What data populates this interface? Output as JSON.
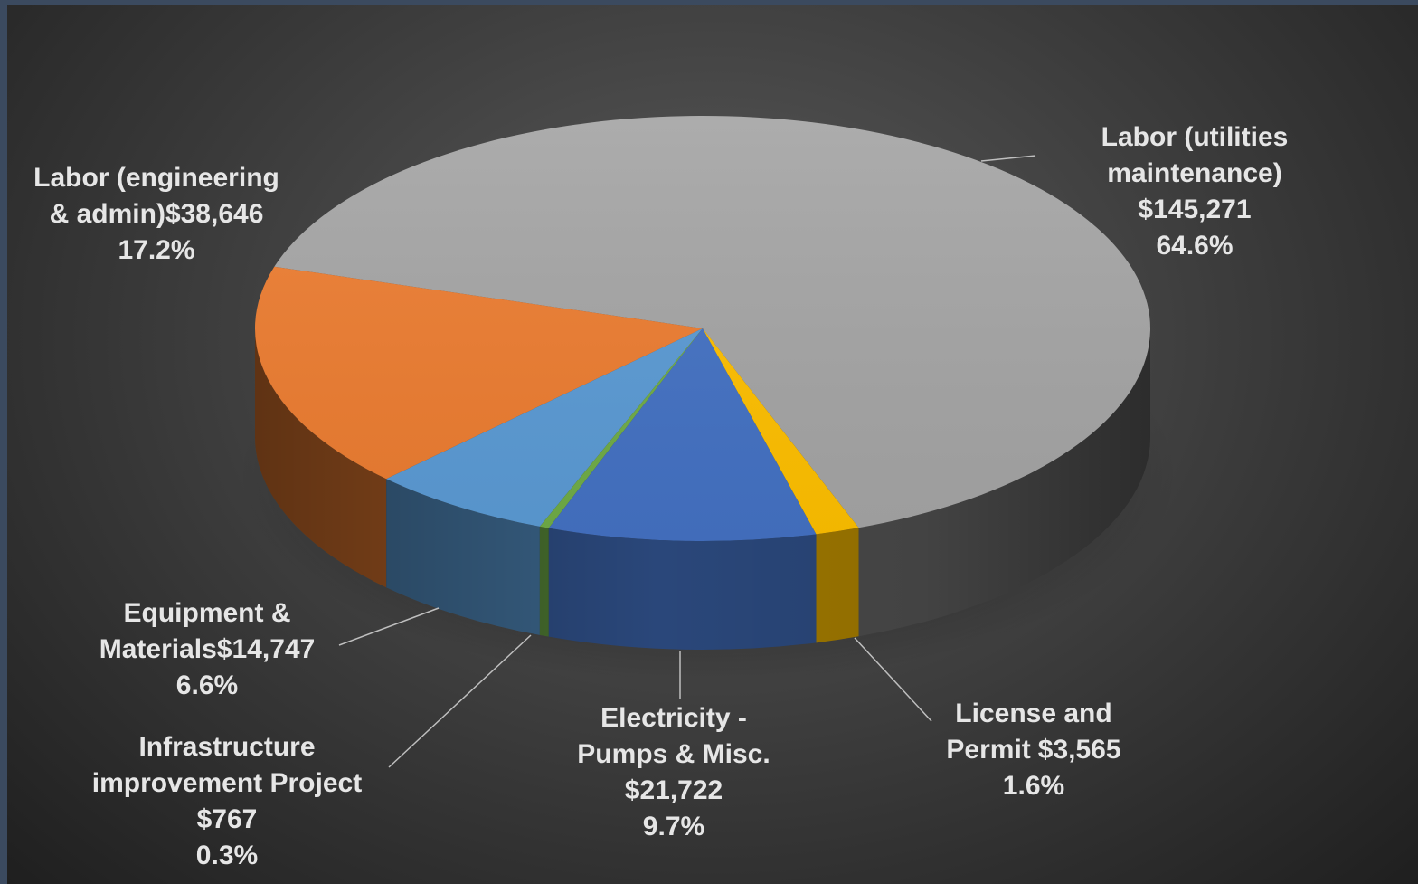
{
  "chart_data": {
    "type": "pie",
    "categories": [
      "Labor (utilities maintenance)",
      "Labor (engineering & admin)",
      "Equipment & Materials",
      "Infrastructure improvement Project",
      "Electricity - Pumps & Misc.",
      "License and Permit"
    ],
    "values": [
      145271,
      38646,
      14747,
      767,
      21722,
      3565
    ],
    "value_labels": [
      "$145,271",
      "$38,646",
      "$14,747",
      "$767",
      "$21,722",
      "$3,565"
    ],
    "percents": [
      64.6,
      17.2,
      6.6,
      0.3,
      9.7,
      1.6
    ],
    "percent_labels": [
      "64.6%",
      "17.2%",
      "6.6%",
      "0.3%",
      "9.7%",
      "1.6%"
    ],
    "colors": [
      "#a5a5a5",
      "#ed7d31",
      "#5b9bd5",
      "#70ad47",
      "#4472c4",
      "#ffc000"
    ]
  }
}
